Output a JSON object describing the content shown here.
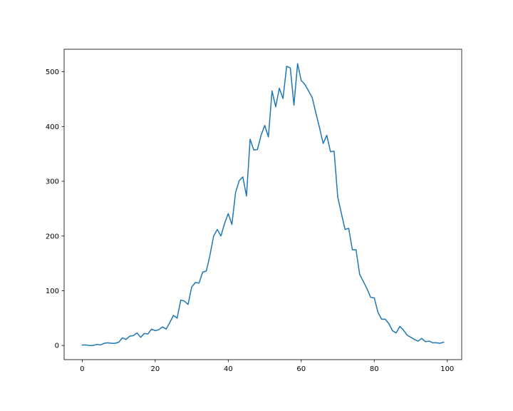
{
  "chart_data": {
    "type": "line",
    "title": "",
    "xlabel": "",
    "ylabel": "",
    "xlim": [
      -4.95,
      103.95
    ],
    "ylim": [
      -25.8,
      541.2
    ],
    "x_ticks": [
      0,
      20,
      40,
      60,
      80,
      100
    ],
    "y_ticks": [
      0,
      100,
      200,
      300,
      400,
      500
    ],
    "grid": false,
    "legend": "none",
    "series": [
      {
        "color": "#1f77b4",
        "x": [
          0,
          1,
          2,
          3,
          4,
          5,
          6,
          7,
          8,
          9,
          10,
          11,
          12,
          13,
          14,
          15,
          16,
          17,
          18,
          19,
          20,
          21,
          22,
          23,
          24,
          25,
          26,
          27,
          28,
          29,
          30,
          31,
          32,
          33,
          34,
          35,
          36,
          37,
          38,
          39,
          40,
          41,
          42,
          43,
          44,
          45,
          46,
          47,
          48,
          49,
          50,
          51,
          52,
          53,
          54,
          55,
          56,
          57,
          58,
          59,
          60,
          61,
          62,
          63,
          64,
          65,
          66,
          67,
          68,
          69,
          70,
          71,
          72,
          73,
          74,
          75,
          76,
          77,
          78,
          79,
          80,
          81,
          82,
          83,
          84,
          85,
          86,
          87,
          88,
          89,
          90,
          91,
          92,
          93,
          94,
          95,
          96,
          97,
          98,
          99
        ],
        "values": [
          1,
          1,
          0,
          0,
          2,
          1,
          4,
          5,
          4,
          4,
          6,
          14,
          11,
          17,
          18,
          23,
          15,
          22,
          21,
          30,
          27,
          29,
          34,
          30,
          42,
          55,
          50,
          83,
          81,
          75,
          107,
          115,
          114,
          134,
          136,
          165,
          200,
          212,
          200,
          223,
          241,
          221,
          279,
          301,
          308,
          273,
          377,
          357,
          358,
          384,
          402,
          381,
          465,
          436,
          470,
          451,
          510,
          507,
          439,
          515,
          484,
          477,
          465,
          453,
          425,
          398,
          369,
          384,
          354,
          355,
          271,
          241,
          212,
          214,
          175,
          175,
          130,
          117,
          104,
          88,
          87,
          61,
          48,
          48,
          40,
          27,
          23,
          35,
          28,
          19,
          15,
          11,
          8,
          13,
          7,
          8,
          5,
          5,
          4,
          6
        ]
      }
    ]
  }
}
